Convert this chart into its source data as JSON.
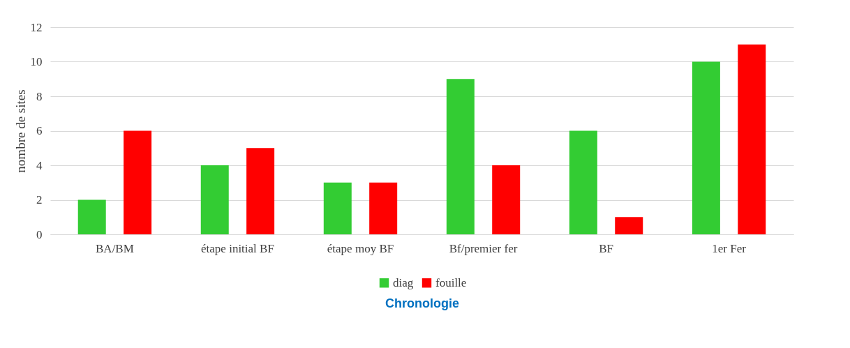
{
  "chart_data": {
    "type": "bar",
    "xlabel": "Chronologie",
    "ylabel": "nombre de sites",
    "categories": [
      "BA/BM",
      "étape initial BF",
      "étape moy BF",
      "Bf/premier fer",
      "BF",
      "1er Fer"
    ],
    "series": [
      {
        "name": "diag",
        "color": "#33cc33",
        "values": [
          2,
          4,
          3,
          9,
          6,
          10
        ]
      },
      {
        "name": "fouille",
        "color": "#ff0000",
        "values": [
          6,
          5,
          3,
          4,
          1,
          11
        ]
      }
    ],
    "ylim": [
      0,
      12
    ],
    "yticks": [
      0,
      2,
      4,
      6,
      8,
      10,
      12
    ],
    "grid": "y",
    "legend": "bottom"
  }
}
